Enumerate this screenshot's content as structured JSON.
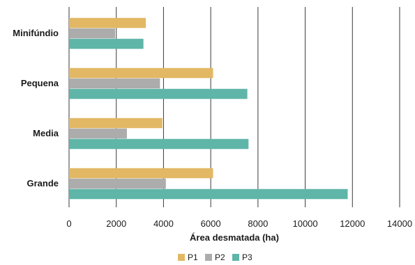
{
  "chart_data": {
    "type": "bar",
    "orientation": "horizontal",
    "categories": [
      "Minifúndio",
      "Pequena",
      "Media",
      "Grande"
    ],
    "series": [
      {
        "name": "P1",
        "color": "#e2b865",
        "values": [
          3250,
          6100,
          3950,
          6100
        ]
      },
      {
        "name": "P2",
        "color": "#acacac",
        "values": [
          1950,
          3850,
          2450,
          4100
        ]
      },
      {
        "name": "P3",
        "color": "#5fb6a8",
        "values": [
          3150,
          7550,
          7600,
          11800
        ]
      }
    ],
    "xlabel": "Área desmatada (ha)",
    "xlim": [
      0,
      14000
    ],
    "xticks": [
      0,
      2000,
      4000,
      6000,
      8000,
      10000,
      12000,
      14000
    ],
    "grid": "vertical",
    "legend_position": "bottom"
  }
}
